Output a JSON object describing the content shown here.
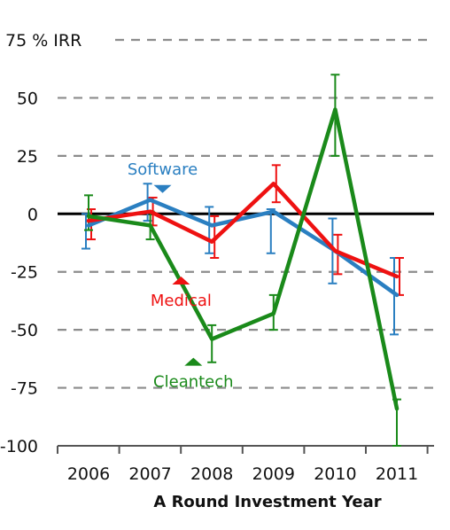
{
  "chart_data": {
    "type": "line",
    "xlabel": "A Round Investment Year",
    "ylabel": "% IRR",
    "y_unit_tick": "75 % IRR",
    "ylim": [
      -100,
      75
    ],
    "yticks": [
      75,
      50,
      25,
      0,
      -25,
      -50,
      -75,
      -100
    ],
    "ytick_labels": [
      "75 % IRR",
      "50",
      "25",
      "0",
      "-25",
      "-50",
      "-75",
      "-100"
    ],
    "categories": [
      "2006",
      "2007",
      "2008",
      "2009",
      "2010",
      "2011"
    ],
    "grid": "horizontal dashed",
    "series": [
      {
        "name": "Software",
        "color": "#2a7fc1",
        "values": [
          -5,
          6,
          -5,
          1,
          -16,
          -35
        ],
        "err_low": [
          -15,
          -3,
          -17,
          -17,
          -30,
          -52
        ],
        "err_high": [
          0,
          13,
          3,
          2,
          -2,
          -19
        ],
        "marker": "down-triangle"
      },
      {
        "name": "Medical",
        "color": "#ee1111",
        "values": [
          -3,
          1,
          -12,
          13,
          -16,
          -27
        ],
        "err_low": [
          -11,
          -5,
          -19,
          5,
          -26,
          -35
        ],
        "err_high": [
          2,
          7,
          -1,
          21,
          -9,
          -19
        ],
        "marker": "up-triangle"
      },
      {
        "name": "Cleantech",
        "color": "#1a8a1a",
        "values": [
          -1,
          -5,
          -54,
          -43,
          45,
          -84
        ],
        "err_low": [
          -7,
          -11,
          -64,
          -50,
          25,
          -100
        ],
        "err_high": [
          8,
          1,
          -48,
          -35,
          60,
          -80
        ],
        "marker": "up-triangle"
      }
    ],
    "annotations": [
      {
        "text": "Software",
        "color": "#2a7fc1",
        "anchor_x": 2.2,
        "anchor_y": 17
      },
      {
        "text": "Medical",
        "color": "#ee1111",
        "anchor_x": 2.5,
        "anchor_y": -32
      },
      {
        "text": "Cleantech",
        "color": "#1a8a1a",
        "anchor_x": 2.7,
        "anchor_y": -67
      }
    ]
  }
}
